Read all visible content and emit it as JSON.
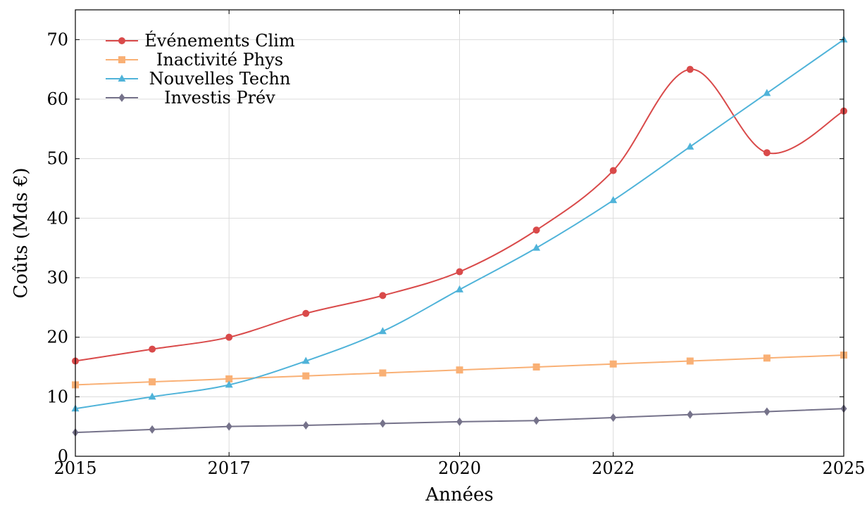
{
  "chart_data": {
    "type": "line",
    "title": "",
    "xlabel": "Années",
    "ylabel": "Coûts (Mds €)",
    "xlim": [
      2015,
      2025
    ],
    "ylim": [
      0,
      75
    ],
    "xticks": [
      2015,
      2017,
      2020,
      2022,
      2025
    ],
    "yticks": [
      0,
      10,
      20,
      30,
      40,
      50,
      60,
      70
    ],
    "grid": true,
    "legend_position": "top-left",
    "x": [
      2015,
      2016,
      2017,
      2018,
      2019,
      2020,
      2021,
      2022,
      2023,
      2024,
      2025
    ],
    "series": [
      {
        "name": "Événements Clim",
        "color": "#d94a4a",
        "marker": "circle",
        "smooth": true,
        "values": [
          16,
          18,
          20,
          24,
          27,
          31,
          38,
          48,
          65,
          51,
          58
        ]
      },
      {
        "name": "Inactivité Phys",
        "color": "#f9b075",
        "marker": "square",
        "smooth": false,
        "values": [
          12,
          12.5,
          13,
          13.5,
          14,
          14.5,
          15,
          15.5,
          16,
          16.5,
          17
        ]
      },
      {
        "name": "Nouvelles Techn",
        "color": "#4fb3d9",
        "marker": "triangle",
        "smooth": true,
        "values": [
          8,
          10,
          12,
          16,
          21,
          28,
          35,
          43,
          52,
          61,
          70
        ]
      },
      {
        "name": "Investis Prév",
        "color": "#75728a",
        "marker": "diamond",
        "smooth": false,
        "values": [
          4,
          4.5,
          5,
          5.2,
          5.5,
          5.8,
          6,
          6.5,
          7,
          7.5,
          8
        ]
      }
    ]
  }
}
